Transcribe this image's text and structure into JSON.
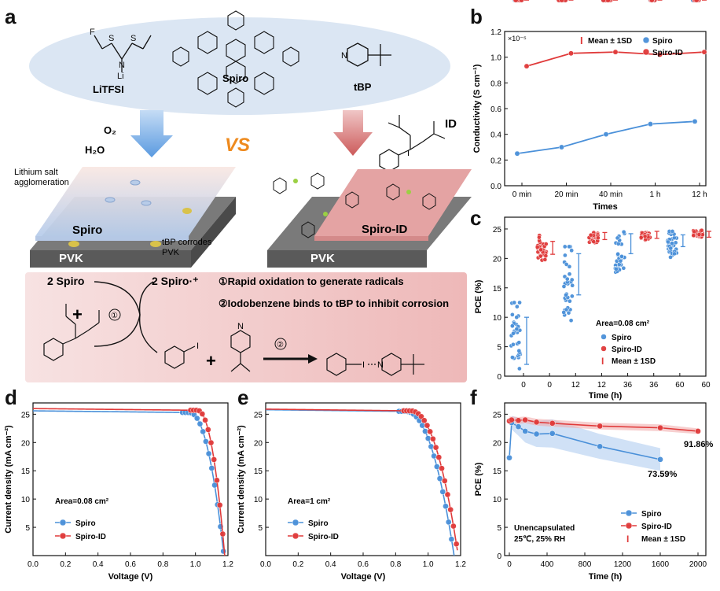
{
  "panel_a": {
    "letter": "a",
    "reagents": {
      "litfsi": "LiTFSI",
      "spiro": "Spiro",
      "tbp": "tBP",
      "id": "ID",
      "atoms": {
        "F": "F",
        "S": "S",
        "O": "O",
        "N": "N",
        "Li": "Li",
        "I": "I"
      }
    },
    "o2": "O₂",
    "h2o": "H₂O",
    "vs": "VS",
    "left_layer": "Spiro",
    "right_layer": "Spiro-ID",
    "pvk": "PVK",
    "lithium_note": "Lithium salt agglomeration",
    "tbp_note": "tBP corrodes PVK",
    "reaction": {
      "reactant": "2 Spiro",
      "plus": "+",
      "product": "2 Spiro·⁺",
      "step1_num": "①",
      "step2_num": "②",
      "step1": "①Rapid oxidation to generate radicals",
      "step2": "②Iodobenzene binds to tBP to inhibit corrosion"
    }
  },
  "colors": {
    "spiro": "#4a90d9",
    "spiro_id": "#e03a3a",
    "gray": "#9b9b9b"
  },
  "chart_data": [
    {
      "id": "b",
      "type": "scatter",
      "ylabel": "Conductivity (S cm⁻¹)",
      "xlabel": "Times",
      "multiplier": "×10⁻⁵",
      "categories": [
        "0 min",
        "20 min",
        "40 min",
        "1 h",
        "12 h"
      ],
      "ylim": [
        0,
        1.2
      ],
      "yticks": [
        "0.0",
        "0.2",
        "0.4",
        "0.6",
        "0.8",
        "1.0",
        "1.2"
      ],
      "legend": [
        "Mean ± 1SD",
        "Spiro",
        "Spiro-ID"
      ],
      "series": [
        {
          "name": "Spiro",
          "mean": [
            0.25,
            0.3,
            0.4,
            0.48,
            0.5
          ],
          "sd": [
            0.11,
            0.06,
            0.14,
            0.1,
            0.12
          ]
        },
        {
          "name": "Spiro-ID",
          "mean": [
            0.93,
            1.03,
            1.04,
            1.02,
            1.04
          ],
          "sd": [
            0.04,
            0.02,
            0.03,
            0.03,
            0.02
          ]
        }
      ]
    },
    {
      "id": "c",
      "type": "scatter",
      "ylabel": "PCE (%)",
      "xlabel": "Time (h)",
      "categories": [
        "0",
        "0",
        "12",
        "12",
        "36",
        "36",
        "60",
        "60"
      ],
      "ylim": [
        0,
        27
      ],
      "yticks": [
        "0",
        "5",
        "10",
        "15",
        "20",
        "25"
      ],
      "legend_title": "Area=0.08 cm²",
      "legend": [
        "Spiro",
        "Spiro-ID",
        "Mean ± 1SD"
      ],
      "groups": [
        {
          "series": "Spiro",
          "mean": 6.0,
          "sd": 4.0,
          "lo": 0.5,
          "hi": 12.5
        },
        {
          "series": "Spiro-ID",
          "mean": 21.8,
          "sd": 1.1,
          "lo": 19.5,
          "hi": 24.2
        },
        {
          "series": "Spiro",
          "mean": 17.3,
          "sd": 3.5,
          "lo": 8.8,
          "hi": 22.0
        },
        {
          "series": "Spiro-ID",
          "mean": 23.8,
          "sd": 0.6,
          "lo": 22.5,
          "hi": 24.9
        },
        {
          "series": "Spiro",
          "mean": 22.5,
          "sd": 1.7,
          "lo": 16.3,
          "hi": 24.5
        },
        {
          "series": "Spiro-ID",
          "mean": 24.0,
          "sd": 0.6,
          "lo": 23.0,
          "hi": 25.0
        },
        {
          "series": "Spiro",
          "mean": 23.0,
          "sd": 1.0,
          "lo": 20.0,
          "hi": 24.6
        },
        {
          "series": "Spiro-ID",
          "mean": 24.1,
          "sd": 0.5,
          "lo": 23.3,
          "hi": 25.0
        }
      ]
    },
    {
      "id": "d",
      "type": "line",
      "ylabel": "Current density (mA cm⁻²)",
      "xlabel": "Voltage (V)",
      "xlim": [
        0,
        1.2
      ],
      "ylim": [
        0,
        27
      ],
      "xticks": [
        "0.0",
        "0.2",
        "0.4",
        "0.6",
        "0.8",
        "1.0",
        "1.2"
      ],
      "yticks": [
        "5",
        "10",
        "15",
        "20",
        "25"
      ],
      "area_label": "Area=0.08 cm²",
      "legend": [
        "Spiro",
        "Spiro-ID"
      ],
      "series": [
        {
          "name": "Spiro",
          "jsc": 25.6,
          "voc": 1.175,
          "knee": 0.96
        },
        {
          "name": "Spiro-ID",
          "jsc": 26.0,
          "voc": 1.18,
          "knee": 1.01
        }
      ]
    },
    {
      "id": "e",
      "type": "line",
      "ylabel": "Current density (mA cm⁻²)",
      "xlabel": "Voltage (V)",
      "xlim": [
        0,
        1.2
      ],
      "ylim": [
        0,
        27
      ],
      "xticks": [
        "0.0",
        "0.2",
        "0.4",
        "0.6",
        "0.8",
        "1.0",
        "1.2"
      ],
      "yticks": [
        "5",
        "10",
        "15",
        "20",
        "25"
      ],
      "area_label": "Area=1 cm²",
      "legend": [
        "Spiro",
        "Spiro-ID"
      ],
      "series": [
        {
          "name": "Spiro",
          "jsc": 25.8,
          "voc": 1.16,
          "knee": 0.86
        },
        {
          "name": "Spiro-ID",
          "jsc": 25.9,
          "voc": 1.185,
          "knee": 0.89
        }
      ]
    },
    {
      "id": "f",
      "type": "line",
      "ylabel": "PCE (%)",
      "xlabel": "Time (h)",
      "xlim": [
        0,
        2000
      ],
      "ylim": [
        0,
        27
      ],
      "xticks": [
        "0",
        "400",
        "800",
        "1200",
        "1600",
        "2000"
      ],
      "yticks": [
        "0",
        "5",
        "10",
        "15",
        "20",
        "25"
      ],
      "note_lines": [
        "Unencapsulated",
        "25℃, 25% RH"
      ],
      "end_labels": [
        "73.59%",
        "91.86%"
      ],
      "legend": [
        "Spiro",
        "Spiro-ID",
        "Mean ± 1SD"
      ],
      "series": [
        {
          "name": "Spiro",
          "x": [
            0,
            24,
            96,
            168,
            288,
            456,
            960,
            1600
          ],
          "y": [
            17.3,
            23.5,
            22.8,
            22.0,
            21.5,
            21.6,
            19.3,
            17.0
          ],
          "band": [
            0.5,
            1.2,
            1.6,
            2.0,
            2.3,
            2.5,
            2.2,
            2.0
          ]
        },
        {
          "name": "Spiro-ID",
          "x": [
            0,
            24,
            96,
            168,
            288,
            456,
            960,
            1600,
            2000
          ],
          "y": [
            23.8,
            24.0,
            23.9,
            24.0,
            23.6,
            23.4,
            22.9,
            22.6,
            22.0
          ],
          "band": [
            0.8,
            0.6,
            0.6,
            0.6,
            0.6,
            0.6,
            0.6,
            0.6,
            0.5
          ]
        }
      ]
    }
  ]
}
